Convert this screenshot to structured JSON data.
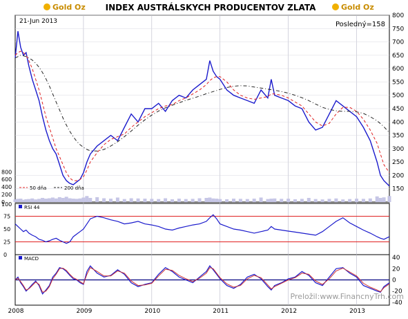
{
  "logo_text": "Gold Oz",
  "chart_data": [
    {
      "id": "price",
      "type": "line",
      "title": "INDEX AUSTRÁLSKYCH PRODUCENTOV ZLATA",
      "date_label": "21-Jun 2013",
      "last_label": "Posledný=158",
      "xlabel": "",
      "ylabel": "",
      "x_ticks": [
        "2008",
        "2009",
        "2010",
        "2011",
        "2012",
        "2013"
      ],
      "x_domain": [
        2008.0,
        2013.48
      ],
      "ylim": [
        100,
        800
      ],
      "right_ticks": [
        150,
        200,
        250,
        300,
        350,
        400,
        450,
        500,
        550,
        600,
        650,
        700,
        750,
        800
      ],
      "volume_ticks": [
        0,
        200,
        400,
        600,
        800
      ],
      "volume_scale_max": 1000,
      "x": [
        2008.0,
        2008.04,
        2008.08,
        2008.12,
        2008.16,
        2008.2,
        2008.25,
        2008.3,
        2008.35,
        2008.4,
        2008.45,
        2008.5,
        2008.55,
        2008.6,
        2008.65,
        2008.7,
        2008.75,
        2008.8,
        2008.85,
        2008.9,
        2008.95,
        2009.0,
        2009.05,
        2009.1,
        2009.2,
        2009.3,
        2009.4,
        2009.5,
        2009.6,
        2009.7,
        2009.8,
        2009.9,
        2010.0,
        2010.1,
        2010.2,
        2010.3,
        2010.4,
        2010.5,
        2010.6,
        2010.7,
        2010.8,
        2010.85,
        2010.9,
        2010.95,
        2011.0,
        2011.1,
        2011.2,
        2011.3,
        2011.4,
        2011.5,
        2011.6,
        2011.7,
        2011.75,
        2011.8,
        2011.9,
        2012.0,
        2012.1,
        2012.2,
        2012.3,
        2012.4,
        2012.5,
        2012.6,
        2012.7,
        2012.8,
        2012.9,
        2013.0,
        2013.1,
        2013.2,
        2013.3,
        2013.35,
        2013.4,
        2013.48
      ],
      "series": [
        {
          "name": "",
          "color": "#1a1acc",
          "values": [
            640,
            740,
            680,
            650,
            660,
            610,
            560,
            520,
            480,
            420,
            370,
            330,
            300,
            280,
            240,
            200,
            180,
            170,
            165,
            175,
            185,
            210,
            250,
            280,
            310,
            330,
            350,
            330,
            380,
            430,
            400,
            450,
            450,
            470,
            440,
            480,
            500,
            490,
            520,
            540,
            560,
            630,
            590,
            570,
            560,
            520,
            500,
            490,
            480,
            470,
            520,
            490,
            560,
            500,
            490,
            480,
            460,
            450,
            400,
            370,
            380,
            430,
            480,
            460,
            440,
            420,
            380,
            330,
            250,
            200,
            180,
            160
          ]
        },
        {
          "name": "50 dňa",
          "color": "#e02020",
          "values": [
            650,
            660,
            665,
            660,
            650,
            630,
            600,
            560,
            520,
            470,
            420,
            380,
            340,
            300,
            270,
            240,
            210,
            190,
            180,
            180,
            185,
            195,
            220,
            250,
            285,
            315,
            335,
            345,
            355,
            380,
            400,
            420,
            435,
            450,
            460,
            465,
            480,
            490,
            505,
            520,
            540,
            555,
            565,
            570,
            570,
            550,
            520,
            500,
            490,
            485,
            490,
            495,
            505,
            505,
            500,
            490,
            475,
            460,
            430,
            400,
            385,
            395,
            430,
            455,
            455,
            440,
            410,
            370,
            320,
            280,
            240,
            210
          ]
        },
        {
          "name": "200 dňa",
          "color": "#222222",
          "values": [
            640,
            645,
            650,
            648,
            645,
            640,
            632,
            620,
            605,
            585,
            562,
            535,
            505,
            475,
            445,
            415,
            388,
            365,
            345,
            328,
            315,
            305,
            297,
            292,
            291,
            297,
            310,
            326,
            345,
            366,
            388,
            408,
            426,
            441,
            453,
            463,
            472,
            481,
            489,
            497,
            506,
            510,
            514,
            518,
            522,
            529,
            534,
            536,
            535,
            531,
            527,
            523,
            521,
            519,
            514,
            508,
            500,
            491,
            480,
            467,
            455,
            447,
            442,
            440,
            440,
            438,
            432,
            420,
            404,
            394,
            382,
            360
          ]
        }
      ],
      "volume": [
        70,
        85,
        90,
        60,
        75,
        80,
        95,
        70,
        85,
        110,
        90,
        100,
        120,
        95,
        130,
        110,
        140,
        100,
        90,
        85,
        95,
        120,
        160,
        110,
        130,
        100,
        90,
        120,
        80,
        100,
        95,
        90,
        85,
        80,
        100,
        75,
        90,
        80,
        85,
        100,
        110,
        120,
        95,
        90,
        80,
        75,
        90,
        85,
        80,
        90,
        120,
        80,
        90,
        95,
        85,
        90,
        75,
        85,
        110,
        80,
        70,
        85,
        95,
        70,
        80,
        90,
        85,
        95,
        150,
        110,
        125,
        160
      ],
      "legend": [
        "50 dňa",
        "200 dňa"
      ],
      "legend_position": "bottom-left",
      "grid": true
    },
    {
      "id": "rsi",
      "type": "line",
      "series_label": "RSI 44",
      "left_ticks": [
        0,
        25,
        50,
        75,
        100
      ],
      "ylim": [
        0,
        100
      ],
      "reference_lines": [
        25,
        75
      ],
      "series": [
        {
          "name": "RSI 44",
          "color": "#1a1acc",
          "values": [
            60,
            55,
            50,
            45,
            48,
            42,
            38,
            35,
            30,
            28,
            25,
            27,
            30,
            32,
            28,
            25,
            22,
            25,
            35,
            40,
            45,
            50,
            60,
            70,
            75,
            72,
            68,
            65,
            60,
            62,
            65,
            60,
            58,
            55,
            50,
            48,
            52,
            55,
            58,
            60,
            65,
            72,
            78,
            70,
            60,
            55,
            50,
            48,
            45,
            42,
            45,
            48,
            55,
            50,
            48,
            46,
            44,
            42,
            40,
            38,
            45,
            55,
            65,
            72,
            62,
            55,
            48,
            42,
            35,
            32,
            30,
            35
          ]
        }
      ]
    },
    {
      "id": "macd",
      "type": "line",
      "series_label": "MACD",
      "right_ticks": [
        -40,
        -20,
        0,
        20,
        40
      ],
      "ylim": [
        -45,
        45
      ],
      "x_ticks": [
        "2008",
        "2009",
        "2010",
        "2011",
        "2012",
        "2013"
      ],
      "series": [
        {
          "name": "MACD",
          "color": "#1a1acc",
          "values": [
            0,
            5,
            -5,
            -12,
            -20,
            -15,
            -8,
            -2,
            -10,
            -25,
            -18,
            -10,
            5,
            12,
            22,
            20,
            15,
            8,
            2,
            0,
            -5,
            -8,
            15,
            25,
            12,
            5,
            8,
            18,
            10,
            -5,
            -12,
            -8,
            -5,
            10,
            22,
            15,
            5,
            0,
            -5,
            5,
            15,
            25,
            18,
            10,
            2,
            -10,
            -15,
            -8,
            5,
            10,
            2,
            -12,
            -18,
            -10,
            -5,
            2,
            5,
            15,
            8,
            -5,
            -10,
            5,
            20,
            22,
            12,
            5,
            -10,
            -15,
            -20,
            -22,
            -12,
            -5
          ]
        },
        {
          "name": "Signal",
          "color": "#cc3333",
          "values": [
            0,
            3,
            -3,
            -10,
            -18,
            -16,
            -10,
            -4,
            -8,
            -22,
            -20,
            -12,
            2,
            10,
            20,
            21,
            17,
            10,
            4,
            1,
            -3,
            -7,
            10,
            22,
            15,
            7,
            7,
            16,
            12,
            -2,
            -10,
            -9,
            -6,
            7,
            19,
            17,
            8,
            2,
            -3,
            3,
            12,
            22,
            20,
            12,
            4,
            -7,
            -13,
            -10,
            2,
            8,
            4,
            -9,
            -16,
            -12,
            -6,
            0,
            4,
            12,
            10,
            -2,
            -8,
            2,
            16,
            21,
            14,
            7,
            -6,
            -13,
            -18,
            -21,
            -14,
            -7
          ]
        }
      ]
    }
  ],
  "credit": "Preložil:www.FinancnyTrh.com"
}
